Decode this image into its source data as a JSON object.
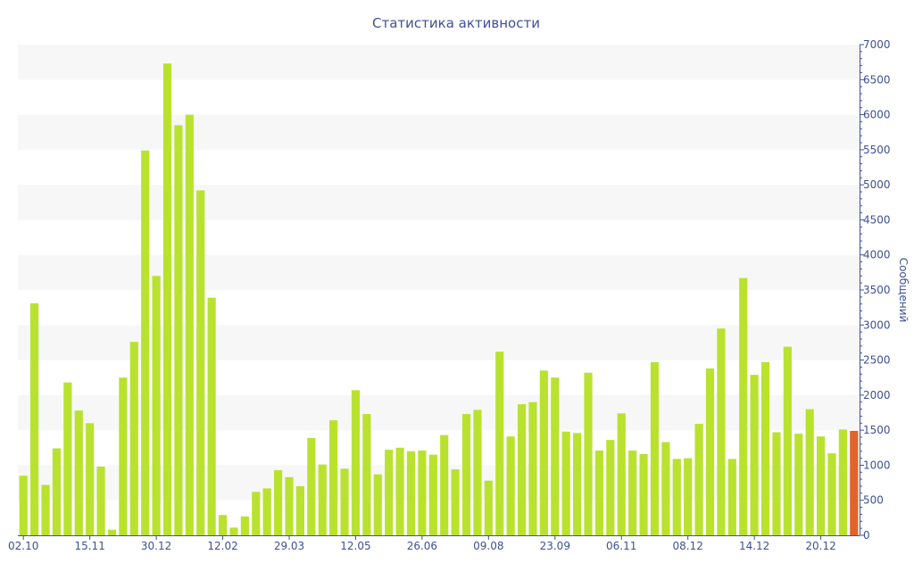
{
  "chart_data": {
    "type": "bar",
    "title": "Статистика активности",
    "ylabel": "Сообщений",
    "xlabel": "",
    "ylim": [
      0,
      7000
    ],
    "y_ticks": [
      0,
      500,
      1000,
      1500,
      2000,
      2500,
      3000,
      3500,
      4000,
      4500,
      5000,
      5500,
      6000,
      6500,
      7000
    ],
    "y_axis_side": "right",
    "grid": "alternating horizontal bands",
    "x_tick_labels": [
      "02.10",
      "15.11",
      "30.12",
      "12.02",
      "29.03",
      "12.05",
      "26.06",
      "09.08",
      "23.09",
      "06.11",
      "08.12",
      "14.12",
      "20.12"
    ],
    "x_tick_bar_index": [
      0,
      6,
      12,
      18,
      24,
      30,
      36,
      42,
      48,
      54,
      60,
      66,
      72
    ],
    "values": [
      850,
      3310,
      720,
      1240,
      2180,
      1780,
      1600,
      980,
      80,
      2250,
      2760,
      5490,
      3700,
      6730,
      5850,
      6000,
      4920,
      3390,
      290,
      110,
      270,
      620,
      670,
      930,
      830,
      700,
      1390,
      1010,
      1640,
      950,
      2070,
      1730,
      870,
      1220,
      1250,
      1200,
      1210,
      1150,
      1430,
      940,
      1730,
      1790,
      780,
      2620,
      1410,
      1870,
      1900,
      2350,
      2250,
      1480,
      1460,
      2320,
      1210,
      1360,
      1740,
      1210,
      1160,
      2470,
      1330,
      1090,
      1100,
      1590,
      2380,
      2950,
      1090,
      3670,
      2290,
      2470,
      1470,
      2690,
      1450,
      1800,
      1410,
      1170,
      1510,
      1490
    ],
    "highlight_last": true,
    "colors": {
      "bar": "#b9e22f",
      "bar_last": "#e2632a",
      "band": "#f7f7f7",
      "axis": "#3f5096",
      "text": "#3f5096"
    }
  }
}
